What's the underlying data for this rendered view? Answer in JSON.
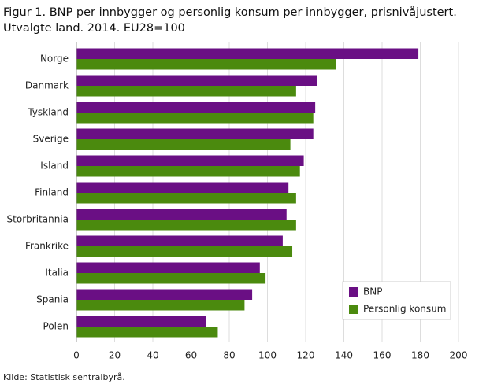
{
  "chart_data": {
    "type": "hbar",
    "title_lines": [
      "Figur 1. BNP per innbygger og personlig konsum per innbygger, prisnivåjustert.",
      "Utvalgte land. 2014. EU28=100"
    ],
    "categories": [
      "Norge",
      "Danmark",
      "Tyskland",
      "Sverige",
      "Island",
      "Finland",
      "Storbritannia",
      "Frankrike",
      "Italia",
      "Spania",
      "Polen"
    ],
    "series": [
      {
        "name": "BNP",
        "color": "#6a0f84",
        "values": [
          179,
          126,
          125,
          124,
          119,
          111,
          110,
          108,
          96,
          92,
          68
        ]
      },
      {
        "name": "Personlig konsum",
        "color": "#4b8a0e",
        "values": [
          136,
          115,
          124,
          112,
          117,
          115,
          115,
          113,
          99,
          88,
          74
        ]
      }
    ],
    "xlim": [
      0,
      200
    ],
    "xticks": [
      0,
      20,
      40,
      60,
      80,
      100,
      120,
      140,
      160,
      180,
      200
    ],
    "grid": true,
    "legend": "lower right",
    "source": "Kilde: Statistisk sentralbyrå."
  }
}
